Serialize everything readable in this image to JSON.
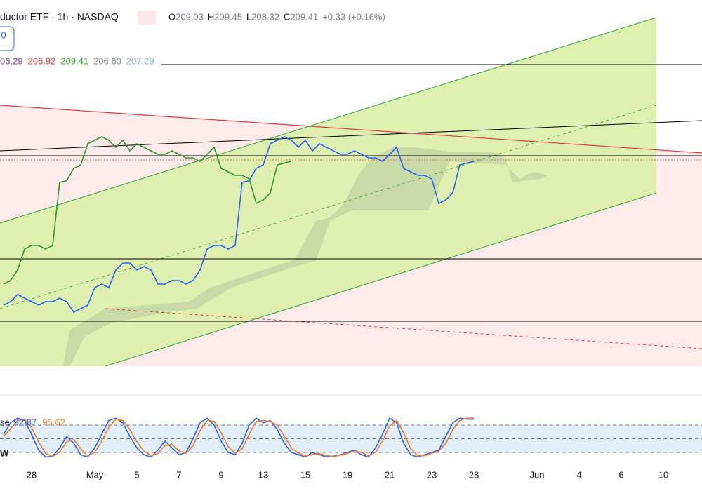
{
  "header": {
    "title": "ductor ETF · 1h · NASDAQ",
    "badge": "0",
    "ohlc": [
      {
        "label": "O",
        "value": 209.03
      },
      {
        "label": "H",
        "value": 209.45
      },
      {
        "label": "L",
        "value": 208.32
      },
      {
        "label": "C",
        "value": 209.41
      }
    ],
    "change": "+0.33 (+0.16%)",
    "indicator_values": [
      {
        "text": "06.29",
        "color": "#7b3fa0"
      },
      {
        "text": "206.92",
        "color": "#e0393e"
      },
      {
        "text": "209.41",
        "color": "#2e9a2e"
      },
      {
        "text": "206.60",
        "color": "#888888"
      },
      {
        "text": "207.29",
        "color": "#7fb4e0"
      }
    ]
  },
  "chart_data": [
    {
      "type": "line",
      "categories": [
        null,
        null,
        null,
        null,
        "28",
        null,
        null,
        null,
        null,
        null,
        null,
        null,
        null,
        "May",
        null,
        null,
        null,
        null,
        null,
        "5",
        null,
        null,
        null,
        null,
        null,
        "7",
        null,
        null,
        null,
        null,
        null,
        "9",
        null,
        null,
        null,
        null,
        null,
        "13",
        null,
        null,
        null,
        null,
        null,
        "15",
        null,
        null,
        null,
        null,
        null,
        "19",
        null,
        null,
        null,
        null,
        null,
        "21",
        null,
        null,
        null,
        null,
        null,
        "23",
        null,
        null,
        null,
        null,
        null,
        "28",
        null,
        null,
        null,
        null,
        null,
        null,
        null,
        null,
        "Jun",
        null,
        null,
        null,
        null,
        null,
        "4",
        null,
        null,
        null,
        null,
        null,
        "6",
        null,
        null,
        null,
        null,
        null,
        "10",
        null,
        null,
        null,
        null,
        null
      ],
      "ylim": [
        183,
        224.6
      ],
      "series": [
        {
          "name": "Close",
          "color": "#2962ff",
          "values": [
            193.0,
            193.4,
            194.2,
            193.8,
            193.4,
            193.0,
            193.4,
            193.4,
            193.8,
            193.4,
            192.2,
            192.6,
            193.0,
            195.0,
            195.4,
            195.0,
            197.0,
            197.8,
            197.8,
            197.0,
            197.4,
            197.0,
            195.4,
            195.4,
            195.8,
            195.8,
            195.4,
            195.8,
            197.0,
            199.4,
            199.8,
            199.8,
            199.4,
            199.8,
            207.0,
            207.2,
            208.6,
            209.0,
            211.4,
            211.8,
            212.2,
            211.8,
            211.0,
            211.8,
            210.6,
            211.4,
            211.0,
            210.6,
            210.2,
            210.2,
            210.6,
            210.2,
            209.8,
            209.8,
            209.4,
            210.2,
            211.0,
            208.6,
            208.2,
            207.8,
            207.8,
            207.4,
            204.6,
            205.0,
            205.8,
            209.0,
            209.2,
            209.4,
            null,
            null,
            null,
            null,
            null,
            null,
            null,
            null,
            null,
            null,
            null,
            null,
            null,
            null,
            null,
            null,
            null,
            null,
            null,
            null,
            null,
            null,
            null,
            null,
            null,
            null,
            null,
            null,
            null,
            null,
            null,
            null
          ]
        },
        {
          "name": "Lagging Span",
          "color": "#2e9a2e",
          "values": [
            195.4,
            195.8,
            197.0,
            199.4,
            199.8,
            199.8,
            199.4,
            199.8,
            207.0,
            207.2,
            208.6,
            209.0,
            211.4,
            211.8,
            212.2,
            211.8,
            211.0,
            211.8,
            210.6,
            211.4,
            211.0,
            210.6,
            210.2,
            210.2,
            210.6,
            210.2,
            209.8,
            209.8,
            209.4,
            210.2,
            211.0,
            208.6,
            208.2,
            207.8,
            207.8,
            207.4,
            204.6,
            205.0,
            205.8,
            209.0,
            209.2,
            209.4,
            null,
            null,
            null,
            null,
            null,
            null,
            null,
            null,
            null,
            null,
            null,
            null,
            null,
            null,
            null,
            null,
            null,
            null,
            null,
            null,
            null,
            null,
            null,
            null,
            null,
            null,
            null,
            null,
            null,
            null,
            null,
            null,
            null,
            null,
            null,
            null,
            null,
            null,
            null,
            null,
            null,
            null,
            null,
            null,
            null,
            null,
            null,
            null,
            null,
            null,
            null,
            null,
            null,
            null,
            null,
            null,
            null,
            null
          ]
        }
      ]
    },
    {
      "type": "line",
      "label": "se",
      "ylim": [
        0,
        100
      ],
      "hlines": [
        80,
        50,
        20
      ],
      "series": [
        {
          "name": "%K",
          "color": "#2962ff",
          "values": [
            60,
            85,
            95,
            90,
            60,
            25,
            10,
            12,
            30,
            55,
            40,
            15,
            10,
            30,
            60,
            90,
            95,
            85,
            55,
            30,
            15,
            10,
            25,
            45,
            30,
            15,
            20,
            50,
            85,
            95,
            80,
            45,
            20,
            15,
            40,
            80,
            95,
            85,
            90,
            70,
            40,
            20,
            15,
            10,
            20,
            15,
            10,
            12,
            15,
            20,
            25,
            15,
            10,
            30,
            60,
            95,
            85,
            40,
            15,
            10,
            15,
            20,
            25,
            55,
            85,
            95,
            93,
            92.87,
            null,
            null,
            null,
            null,
            null,
            null,
            null,
            null,
            null,
            null,
            null,
            null,
            null,
            null,
            null,
            null,
            null,
            null,
            null,
            null,
            null,
            null,
            null,
            null,
            null,
            null,
            null,
            null,
            null,
            null,
            null,
            null
          ]
        },
        {
          "name": "%D",
          "color": "#f57c20",
          "values": [
            55,
            72,
            90,
            93,
            75,
            43,
            18,
            11,
            21,
            43,
            48,
            28,
            13,
            20,
            45,
            75,
            93,
            90,
            70,
            43,
            23,
            13,
            18,
            35,
            38,
            23,
            18,
            35,
            68,
            90,
            88,
            63,
            33,
            18,
            28,
            60,
            88,
            90,
            88,
            80,
            55,
            30,
            18,
            13,
            15,
            18,
            13,
            11,
            14,
            18,
            23,
            20,
            13,
            20,
            45,
            78,
            90,
            63,
            28,
            13,
            13,
            18,
            23,
            40,
            70,
            90,
            95,
            95.62,
            null,
            null,
            null,
            null,
            null,
            null,
            null,
            null,
            null,
            null,
            null,
            null,
            null,
            null,
            null,
            null,
            null,
            null,
            null,
            null,
            null,
            null,
            null,
            null,
            null,
            null,
            null,
            null,
            null,
            null,
            null,
            null
          ]
        }
      ]
    }
  ],
  "footer": {
    "corner": "W"
  }
}
